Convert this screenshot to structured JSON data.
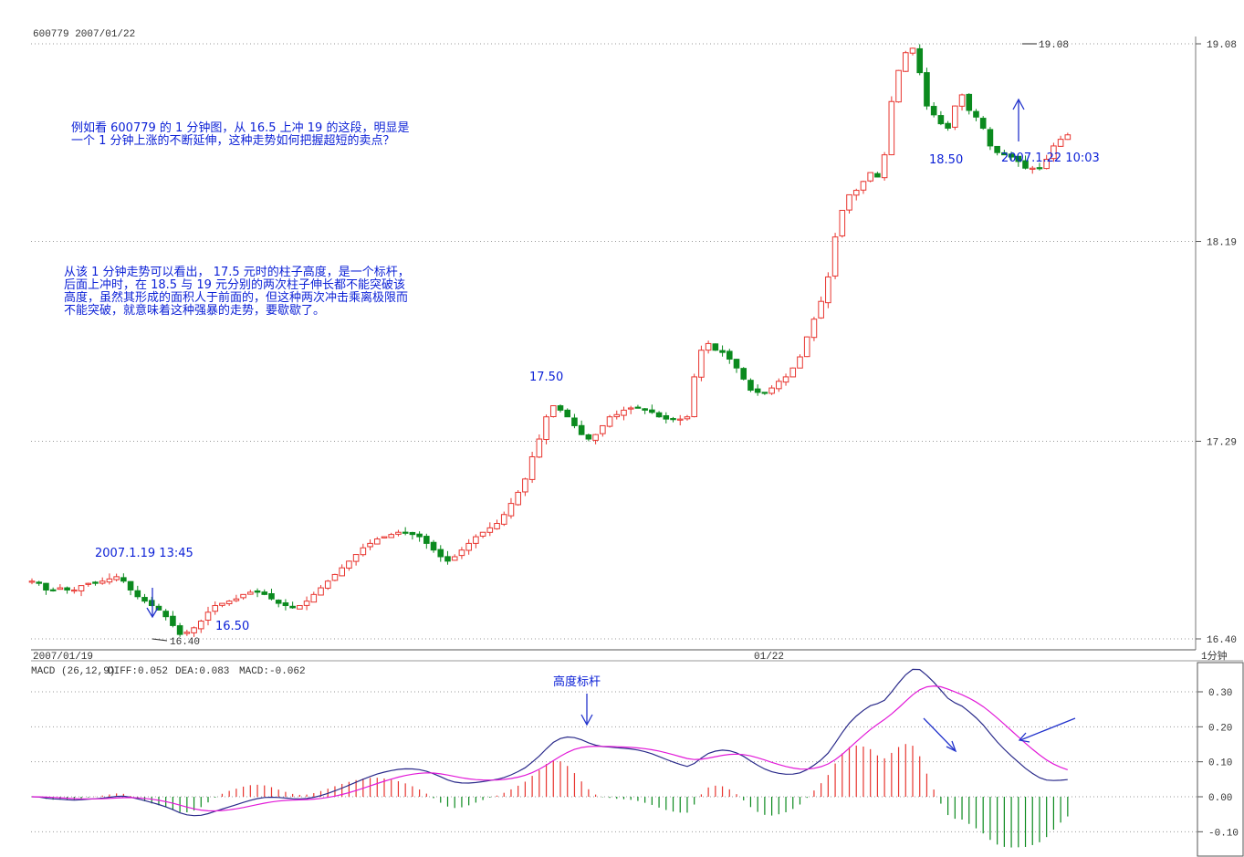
{
  "header_text": "600779 2007/01/22",
  "timeframe_label": "1分钟",
  "annotations": {
    "para1_line1": "例如看 600779 的 1 分钟图，从 16.5 上冲 19 的这段，明显是",
    "para1_line2": "一个 1 分钟上涨的不断延伸，这种走势如何把握超短的卖点？",
    "para2_line1": "从该 1 分钟走势可以看出， 17.5 元时的柱子高度，是一个标杆，",
    "para2_line2": "后面上冲时，在 18.5 与 19 元分别的两次柱子伸长都不能突破该",
    "para2_line3": "高度，虽然其形成的面积人于前面的，但这种两次冲击乘离极限而",
    "para2_line4": "不能突破，就意味着这种强暴的走势，要歇歇了。",
    "label_date1": "2007.1.19 13:45",
    "label_1650": "16.50",
    "label_1750": "17.50",
    "label_1850": "18.50",
    "label_date2": "2007.1.22 10:03",
    "label_height": "高度标杆"
  },
  "colors": {
    "up": "#e8352f",
    "down": "#0b8a1e",
    "diff_line": "#2a2a8a",
    "dea_line": "#e21ad8",
    "annotation": "#0a1fd6",
    "grid": "#999999"
  },
  "chart_data": {
    "type": "candlestick",
    "price_axis": {
      "ticks": [
        16.4,
        17.29,
        18.19,
        19.08
      ],
      "labels": [
        "16.40",
        "17.29",
        "18.19",
        "19.08"
      ],
      "range": [
        16.4,
        19.08
      ]
    },
    "x_axis": {
      "labels": [
        {
          "text": "2007/01/19",
          "index": 0
        },
        {
          "text": "01/22",
          "index": 82
        }
      ]
    },
    "high_label": {
      "text": "19.08",
      "index": 113,
      "value": 19.08
    },
    "low_label": {
      "text": "16.40",
      "index": 21,
      "value": 16.4
    },
    "closes": [
      16.66,
      16.65,
      16.62,
      16.62,
      16.63,
      16.62,
      16.62,
      16.64,
      16.65,
      16.65,
      16.66,
      16.67,
      16.68,
      16.66,
      16.62,
      16.59,
      16.57,
      16.55,
      16.53,
      16.5,
      16.46,
      16.42,
      16.43,
      16.45,
      16.48,
      16.52,
      16.55,
      16.56,
      16.57,
      16.58,
      16.6,
      16.61,
      16.61,
      16.6,
      16.58,
      16.56,
      16.55,
      16.54,
      16.55,
      16.57,
      16.6,
      16.63,
      16.66,
      16.69,
      16.72,
      16.75,
      16.78,
      16.81,
      16.83,
      16.85,
      16.86,
      16.87,
      16.88,
      16.88,
      16.87,
      16.86,
      16.83,
      16.8,
      16.77,
      16.75,
      16.77,
      16.8,
      16.83,
      16.86,
      16.88,
      16.9,
      16.92,
      16.96,
      17.01,
      17.06,
      17.12,
      17.22,
      17.3,
      17.4,
      17.45,
      17.43,
      17.4,
      17.36,
      17.32,
      17.3,
      17.32,
      17.36,
      17.4,
      17.41,
      17.43,
      17.44,
      17.44,
      17.43,
      17.42,
      17.4,
      17.39,
      17.39,
      17.39,
      17.4,
      17.58,
      17.7,
      17.73,
      17.7,
      17.69,
      17.66,
      17.62,
      17.57,
      17.52,
      17.51,
      17.51,
      17.53,
      17.56,
      17.58,
      17.62,
      17.67,
      17.76,
      17.84,
      17.92,
      18.03,
      18.21,
      18.33,
      18.4,
      18.42,
      18.46,
      18.5,
      18.48,
      18.58,
      18.82,
      18.96,
      19.04,
      19.06,
      18.95,
      18.8,
      18.76,
      18.72,
      18.7,
      18.8,
      18.85,
      18.78,
      18.75,
      18.7,
      18.62,
      18.59,
      18.58,
      18.57,
      18.55,
      18.52,
      18.52,
      18.52,
      18.56,
      18.62,
      18.65,
      18.67
    ],
    "gap_after_index": 82,
    "macd": {
      "label": "MACD (26,12,9)",
      "diff_label": "DIFF:0.052",
      "dea_label": "DEA:0.083",
      "macd_label": "MACD:-0.062",
      "axis_ticks": [
        0.3,
        0.2,
        0.1,
        0.0,
        -0.1
      ],
      "axis_labels": [
        "0.30",
        "0.20",
        "0.10",
        "0.00",
        "-0.10"
      ],
      "range": [
        -0.14,
        0.35
      ]
    }
  }
}
